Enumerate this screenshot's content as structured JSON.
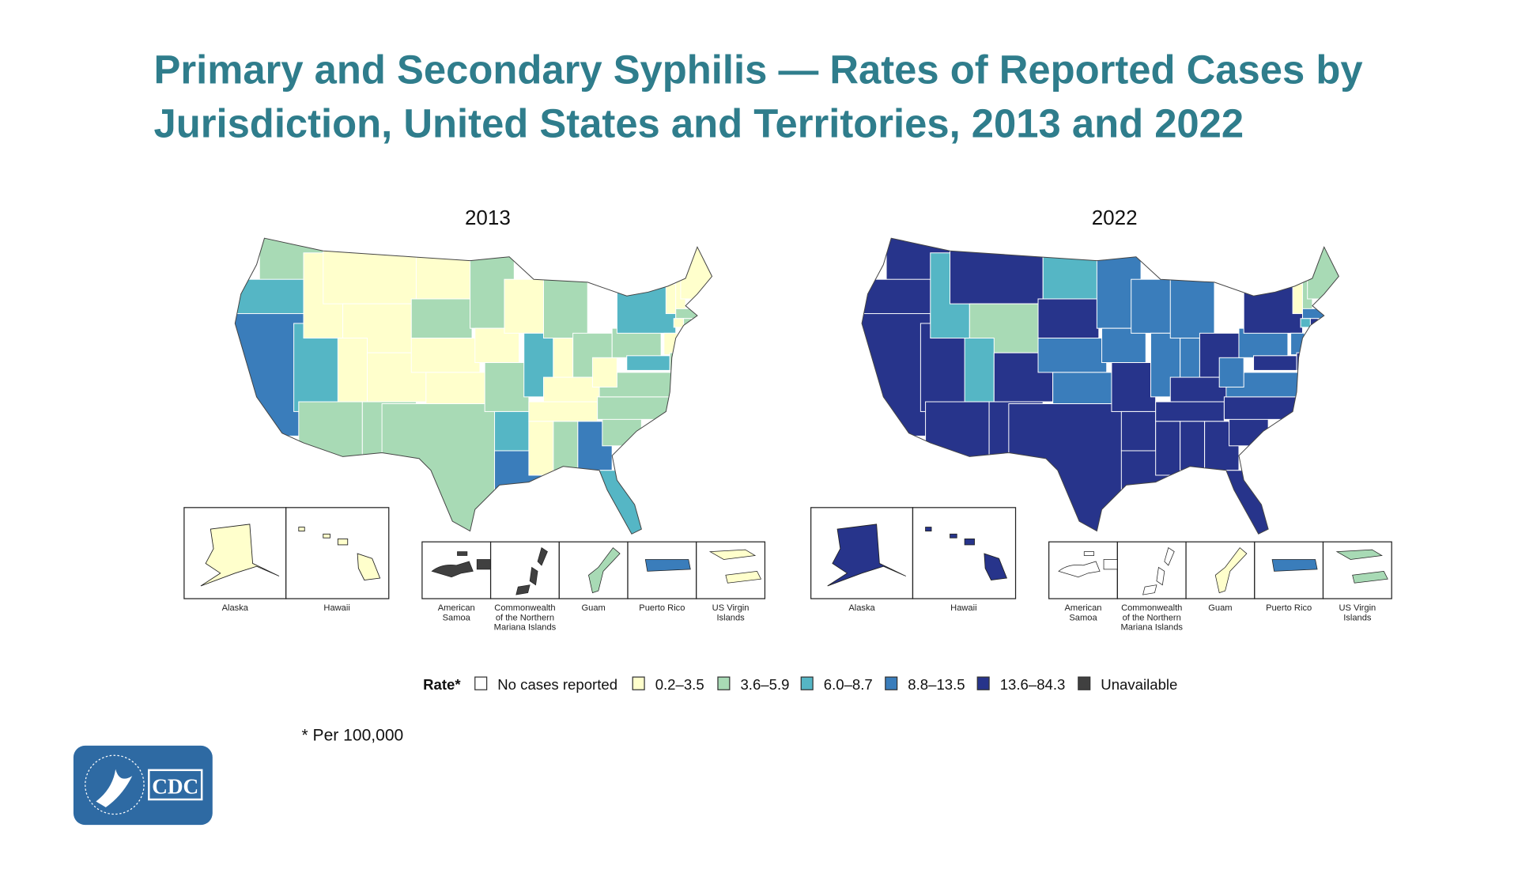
{
  "chart_data": {
    "type": "choropleth-map",
    "title_line1": "Primary and Secondary Syphilis — Rates of Reported Cases by",
    "title_line2": "Jurisdiction, United States and Territories, 2013 and 2022",
    "legend": {
      "title": "Rate*",
      "placement": "bottom",
      "categories": [
        {
          "label": "No cases reported",
          "color": "#ffffff"
        },
        {
          "label": "0.2–3.5",
          "color": "#ffffcc"
        },
        {
          "label": "3.6–5.9",
          "color": "#a8dab5"
        },
        {
          "label": "6.0–8.7",
          "color": "#55b6c5"
        },
        {
          "label": "8.8–13.5",
          "color": "#3a7dbb"
        },
        {
          "label": "13.6–84.3",
          "color": "#27348b"
        },
        {
          "label": "Unavailable",
          "color": "#404040"
        }
      ]
    },
    "footnote": "* Per 100,000",
    "inset_labels": {
      "alaska": "Alaska",
      "hawaii": "Hawaii"
    },
    "territory_labels": [
      [
        "American",
        "Samoa"
      ],
      [
        "Commonwealth",
        "of the Northern",
        "Mariana Islands"
      ],
      [
        "Guam"
      ],
      [
        "Puerto Rico"
      ],
      [
        "US Virgin",
        "Islands"
      ]
    ],
    "maps": [
      {
        "year": "2013",
        "states": {
          "WA": 2,
          "OR": 3,
          "CA": 4,
          "NV": 3,
          "ID": 1,
          "MT": 1,
          "WY": 1,
          "UT": 1,
          "CO": 1,
          "AZ": 2,
          "NM": 2,
          "ND": 1,
          "SD": 2,
          "NE": 1,
          "KS": 1,
          "OK": 1,
          "TX": 2,
          "MN": 2,
          "IA": 1,
          "MO": 2,
          "AR": 3,
          "LA": 4,
          "WI": 1,
          "IL": 3,
          "MI": 2,
          "IN": 1,
          "OH": 2,
          "KY": 1,
          "TN": 1,
          "MS": 1,
          "AL": 2,
          "GA": 4,
          "FL": 3,
          "SC": 2,
          "NC": 2,
          "VA": 2,
          "WV": 1,
          "PA": 2,
          "NY": 3,
          "VT": 1,
          "NH": 1,
          "ME": 1,
          "MA": 2,
          "CT": 1,
          "RI": 2,
          "NJ": 1,
          "MD": 3,
          "DE": 2
        },
        "alaska": 1,
        "hawaii": 1,
        "territories": [
          6,
          6,
          2,
          4,
          1
        ]
      },
      {
        "year": "2022",
        "states": {
          "WA": 5,
          "OR": 5,
          "CA": 5,
          "NV": 5,
          "ID": 3,
          "MT": 5,
          "WY": 2,
          "UT": 3,
          "CO": 5,
          "AZ": 5,
          "NM": 5,
          "ND": 3,
          "SD": 5,
          "NE": 4,
          "KS": 4,
          "OK": 5,
          "TX": 5,
          "MN": 4,
          "IA": 4,
          "MO": 5,
          "AR": 5,
          "LA": 5,
          "WI": 4,
          "IL": 4,
          "MI": 4,
          "IN": 4,
          "OH": 5,
          "KY": 5,
          "TN": 5,
          "MS": 5,
          "AL": 5,
          "GA": 5,
          "FL": 5,
          "SC": 5,
          "NC": 5,
          "VA": 4,
          "WV": 4,
          "PA": 4,
          "NY": 5,
          "VT": 1,
          "NH": 2,
          "ME": 2,
          "MA": 4,
          "CT": 3,
          "RI": 5,
          "NJ": 4,
          "MD": 5,
          "DE": 5
        },
        "alaska": 5,
        "hawaii": 5,
        "territories": [
          0,
          0,
          1,
          4,
          2
        ]
      }
    ]
  },
  "logo": {
    "text": "CDC",
    "color": "#2e6aa3"
  }
}
